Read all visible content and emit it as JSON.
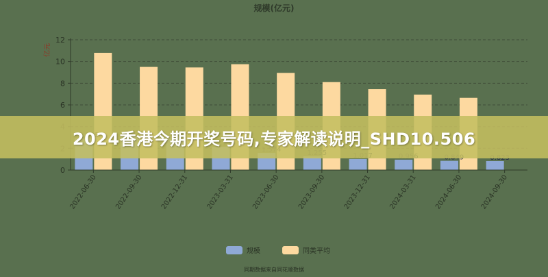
{
  "chart_data": {
    "type": "bar",
    "title": "规模(亿元)",
    "ylabel": "亿元",
    "ylim": [
      0,
      12
    ],
    "yticks": [
      0,
      2,
      4,
      6,
      8,
      10,
      12
    ],
    "grid": true,
    "legend_position": "bottom",
    "categories": [
      "2022-06-30",
      "2022-09-30",
      "2022-12-31",
      "2023-03-31",
      "2023-06-30",
      "2023-09-30",
      "2023-12-31",
      "2024-03-31",
      "2024-06-30",
      "2024-09-30"
    ],
    "series": [
      {
        "name": "规模",
        "color": "#8fa9d6",
        "values": [
          2.906,
          3.076,
          3.084,
          2.134,
          1.574,
          1.255,
          1.017,
          0.956,
          0.849,
          0.823
        ],
        "labels": [
          "2.906",
          "3.076",
          "3.084",
          "2.134",
          "1.574",
          "1.255",
          "1.017",
          "0.956",
          "0.849",
          "0.823"
        ]
      },
      {
        "name": "同类平均",
        "color": "#fdd9a0",
        "values": [
          10.8,
          9.5,
          9.45,
          9.75,
          8.95,
          8.1,
          7.45,
          6.95,
          6.65,
          0
        ]
      }
    ],
    "footnote": "同期数据来自同花顺数据"
  },
  "banner": {
    "text": "2024香港今期开奖号码,专家解读说明_SHD10.506"
  }
}
